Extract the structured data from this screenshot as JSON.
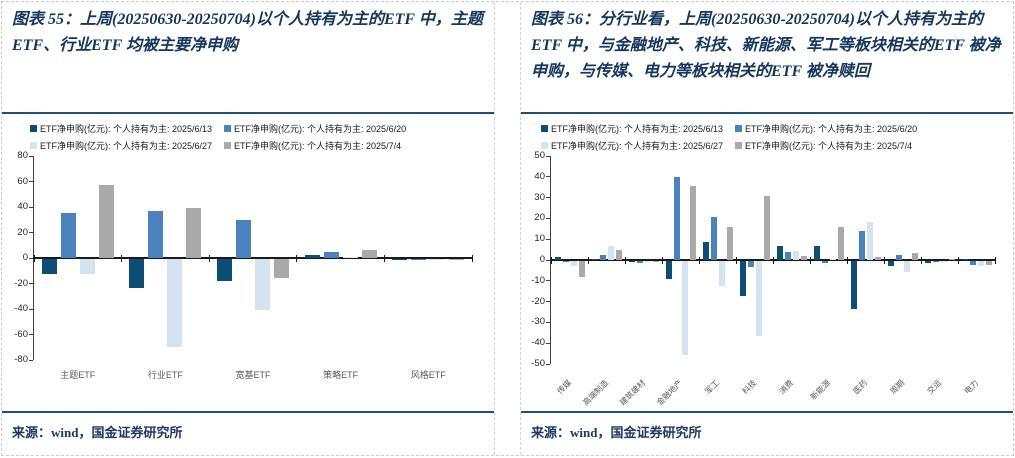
{
  "colors": {
    "title_text": "#17365D",
    "rule": "#1F4E79",
    "axis": "#404040",
    "bar_2025_6_13": "#0E4D75",
    "bar_2025_6_20": "#4A81BE",
    "bar_2025_6_27": "#D5E3F1",
    "bar_2025_7_4": "#A9A9A9"
  },
  "figures": [
    {
      "title": "图表 55：上周(20250630-20250704)以个人持有为主的ETF 中，主题ETF、行业ETF 均被主要净申购",
      "source": "来源：wind，国金证券研究所",
      "chart_data": {
        "type": "bar",
        "title": "",
        "xlabel": "",
        "ylabel": "",
        "unit": "亿元",
        "ylim": [
          -80,
          80
        ],
        "ytick_step": 20,
        "grid": false,
        "legend_position": "top",
        "categories": [
          "主题ETF",
          "行业ETF",
          "宽基ETF",
          "策略ETF",
          "风格ETF"
        ],
        "series": [
          {
            "name": "ETF净申购(亿元): 个人持有为主: 2025/6/13",
            "color": "#0E4D75",
            "values": [
              -12,
              -23,
              -17,
              2,
              -1
            ]
          },
          {
            "name": "ETF净申购(亿元): 个人持有为主: 2025/6/20",
            "color": "#4A81BE",
            "values": [
              35,
              37,
              30,
              4.5,
              -0.8
            ]
          },
          {
            "name": "ETF净申购(亿元): 个人持有为主: 2025/6/27",
            "color": "#D5E3F1",
            "values": [
              -12,
              -69,
              -40,
              0.5,
              -0.3
            ]
          },
          {
            "name": "ETF净申购(亿元): 个人持有为主: 2025/7/4",
            "color": "#A9A9A9",
            "values": [
              57,
              39,
              -15,
              6,
              -0.5
            ]
          }
        ]
      }
    },
    {
      "title": "图表 56：分行业看，上周(20250630-20250704)以个人持有为主的ETF 中，与金融地产、科技、新能源、军工等板块相关的ETF 被净申购，与传媒、电力等板块相关的ETF 被净赎回",
      "source": "来源：wind，国金证券研究所",
      "chart_data": {
        "type": "bar",
        "title": "",
        "xlabel": "",
        "ylabel": "",
        "unit": "亿元",
        "ylim": [
          -50,
          50
        ],
        "ytick_step": 10,
        "grid": false,
        "legend_position": "top",
        "categories": [
          "传媒",
          "高端制造",
          "建筑建材",
          "金融地产",
          "军工",
          "科技",
          "消费",
          "新能源",
          "医药",
          "周期",
          "交运",
          "电力"
        ],
        "series": [
          {
            "name": "ETF净申购(亿元): 个人持有为主: 2025/6/13",
            "color": "#0E4D75",
            "values": [
              1.5,
              0.7,
              -0.5,
              -8.5,
              8.5,
              -17,
              6.5,
              6.5,
              -23,
              -2.5,
              -1,
              0.5
            ]
          },
          {
            "name": "ETF净申购(亿元): 个人持有为主: 2025/6/20",
            "color": "#4A81BE",
            "values": [
              -0.3,
              2.5,
              -1.2,
              40,
              20.5,
              -3,
              4,
              -1,
              14,
              2.5,
              -0.5,
              -2
            ]
          },
          {
            "name": "ETF净申购(亿元): 个人持有为主: 2025/6/27",
            "color": "#D5E3F1",
            "values": [
              -2.5,
              6.5,
              -0.3,
              -45,
              -12,
              -36,
              4.5,
              0.3,
              18.5,
              -5.5,
              -0.3,
              -2.5
            ]
          },
          {
            "name": "ETF净申购(亿元): 个人持有为主: 2025/7/4",
            "color": "#A9A9A9",
            "values": [
              -7.5,
              5,
              -0.5,
              35.5,
              16,
              31,
              2,
              16,
              1.5,
              3.5,
              0.5,
              -2
            ]
          }
        ]
      }
    }
  ]
}
